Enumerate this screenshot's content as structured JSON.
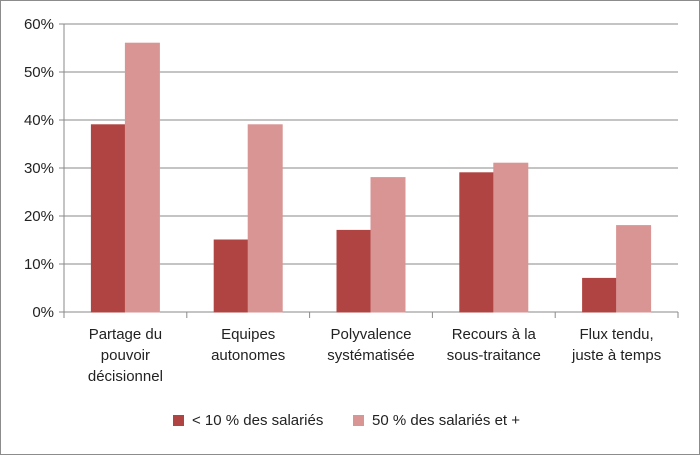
{
  "chart_data": {
    "type": "bar",
    "categories": [
      [
        "Partage du",
        "pouvoir",
        "décisionnel"
      ],
      [
        "Equipes",
        "autonomes"
      ],
      [
        "Polyvalence",
        "systématisée"
      ],
      [
        "Recours à la",
        "sous-traitance"
      ],
      [
        "Flux tendu,",
        "juste à temps"
      ]
    ],
    "series": [
      {
        "name": "< 10 % des salariés",
        "values": [
          39,
          15,
          17,
          29,
          7
        ],
        "color": "#b04442"
      },
      {
        "name": "50 % des salariés et +",
        "values": [
          56,
          39,
          28,
          31,
          18
        ],
        "color": "#d99594"
      }
    ],
    "y_ticks": [
      "0%",
      "10%",
      "20%",
      "30%",
      "40%",
      "50%",
      "60%"
    ],
    "ylim": [
      0,
      60
    ],
    "grid": true,
    "legend": "bottom",
    "title": "",
    "xlabel": "",
    "ylabel": ""
  }
}
